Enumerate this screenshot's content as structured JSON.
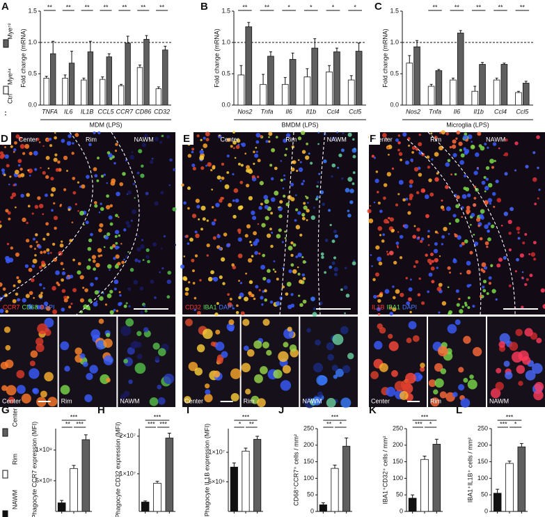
{
  "chart_data": [
    {
      "type": "bar",
      "panel": "A",
      "ylabel": "Fold change (mRNA)",
      "xlabel": "MDM (LPS)",
      "categories": [
        "TNFA",
        "IL6",
        "IL1B",
        "CCL5",
        "CCR7",
        "CD86",
        "CD32"
      ],
      "series": [
        {
          "name": "Mye²⁴",
          "color": "#ffffff",
          "values": [
            0.43,
            0.43,
            0.4,
            0.41,
            0.31,
            0.6,
            0.26
          ],
          "errors": [
            0.03,
            0.05,
            0.03,
            0.04,
            0.02,
            0.04,
            0.03
          ]
        },
        {
          "name": "Mye⁷²",
          "color": "#5f5f5f",
          "values": [
            0.82,
            0.67,
            0.85,
            0.77,
            0.99,
            1.05,
            0.88
          ],
          "errors": [
            0.2,
            0.19,
            0.17,
            0.05,
            0.11,
            0.06,
            0.06
          ]
        }
      ],
      "reference_line": {
        "name": "Ctrl",
        "value": 1
      },
      "significance": [
        "**",
        "**",
        "**",
        "**",
        "**",
        "**",
        "**"
      ],
      "ylim": [
        0,
        1.5
      ],
      "yticks": [
        {
          "value": 0,
          "label": "0.0"
        },
        {
          "value": 0.5,
          "label": "0.5"
        },
        {
          "value": 1,
          "label": "1.0"
        },
        {
          "value": 1.5,
          "label": "1.5"
        }
      ]
    },
    {
      "type": "bar",
      "panel": "B",
      "ylabel": "Fold change (mRNA)",
      "xlabel": "BMDM (LPS)",
      "categories": [
        "Nos2",
        "Tnfa",
        "Il6",
        "Il1b",
        "Ccl4",
        "Ccl5"
      ],
      "series": [
        {
          "color": "#ffffff",
          "values": [
            0.48,
            0.33,
            0.33,
            0.45,
            0.53,
            0.4
          ],
          "errors": [
            0.15,
            0.16,
            0.11,
            0.13,
            0.1,
            0.07
          ]
        },
        {
          "color": "#5f5f5f",
          "values": [
            1.25,
            0.78,
            0.73,
            0.91,
            0.85,
            0.86
          ],
          "errors": [
            0.07,
            0.07,
            0.1,
            0.15,
            0.06,
            0.13
          ]
        }
      ],
      "reference_line": {
        "value": 1
      },
      "significance": [
        "**",
        "**",
        "*",
        "*",
        "*",
        "*"
      ],
      "ylim": [
        0,
        1.5
      ],
      "yticks": [
        {
          "value": 0,
          "label": "0.0"
        },
        {
          "value": 0.5,
          "label": "0.5"
        },
        {
          "value": 1,
          "label": "1.0"
        },
        {
          "value": 1.5,
          "label": "1.5"
        }
      ]
    },
    {
      "type": "bar",
      "panel": "C",
      "ylabel": "Fold change (mRNA)",
      "xlabel": "Microglia (LPS)",
      "categories": [
        "Nos2",
        "Tnfa",
        "Il6",
        "Il1b",
        "Ccl4",
        "Ccl5"
      ],
      "series": [
        {
          "color": "#ffffff",
          "values": [
            0.67,
            0.3,
            0.4,
            0.22,
            0.4,
            0.2
          ],
          "errors": [
            0.12,
            0.03,
            0.03,
            0.08,
            0.03,
            0.02
          ]
        },
        {
          "color": "#5f5f5f",
          "values": [
            0.93,
            0.55,
            1.15,
            0.65,
            0.65,
            0.35
          ],
          "errors": [
            0.1,
            0.02,
            0.04,
            0.03,
            0.02,
            0.03
          ]
        }
      ],
      "reference_line": {
        "value": 1
      },
      "significance": [
        null,
        "**",
        "**",
        "**",
        "**",
        "**"
      ],
      "ylim": [
        0,
        1.5
      ],
      "yticks": [
        {
          "value": 0,
          "label": "0.0"
        },
        {
          "value": 0.5,
          "label": "0.5"
        },
        {
          "value": 1,
          "label": "1.0"
        },
        {
          "value": 1.5,
          "label": "1.5"
        }
      ]
    },
    {
      "type": "bar",
      "panel": "G",
      "ylabel": "Phagocyte CCR7 expression (MFI)",
      "categories": [
        "NAWM",
        "Rim",
        "Center"
      ],
      "colors": [
        "#111111",
        "#ffffff",
        "#5f5f5f"
      ],
      "values": [
        140000000,
        700000000,
        1170000000
      ],
      "errors": [
        40000000,
        50000000,
        80000000
      ],
      "significance": [
        "***",
        "**",
        "***"
      ],
      "ylim": [
        0,
        1350000000
      ],
      "yticks": [
        {
          "value": 500000000,
          "label": "5×10⁸"
        },
        {
          "value": 1000000000,
          "label": "1×10⁹"
        }
      ]
    },
    {
      "type": "bar",
      "panel": "H",
      "ylabel": "Phagocyte CD32 expression (MFI)",
      "colors": [
        "#111111",
        "#ffffff",
        "#5f5f5f"
      ],
      "values": [
        2500000,
        7500000,
        19500000
      ],
      "errors": [
        300000,
        500000,
        1300000
      ],
      "significance": [
        "***",
        "***",
        "***"
      ],
      "ylim": [
        0,
        22000000
      ],
      "yticks": [
        {
          "value": 10000000,
          "label": "1×10⁷"
        },
        {
          "value": 20000000,
          "label": "2×10⁷"
        }
      ]
    },
    {
      "type": "bar",
      "panel": "I",
      "ylabel": "Phagocyte IL1B expression (MFI)",
      "colors": [
        "#111111",
        "#ffffff",
        "#5f5f5f"
      ],
      "values": [
        7500000,
        10200000,
        12200000
      ],
      "errors": [
        700000,
        500000,
        500000
      ],
      "significance": [
        "***",
        "*",
        "**"
      ],
      "ylim": [
        0,
        14000000
      ],
      "yticks": [
        {
          "value": 5000000,
          "label": "5×10⁶"
        },
        {
          "value": 10000000,
          "label": "1×10⁷"
        }
      ]
    },
    {
      "type": "bar",
      "panel": "J",
      "ylabel": "CD68⁺CCR7⁺ cells / mm²",
      "colors": [
        "#111111",
        "#ffffff",
        "#5f5f5f"
      ],
      "values": [
        20,
        130,
        197
      ],
      "errors": [
        6,
        10,
        25
      ],
      "significance": [
        "***",
        "**",
        "*"
      ],
      "ylim": [
        0,
        250
      ],
      "yticks": [
        0,
        50,
        100,
        150,
        200,
        250
      ]
    },
    {
      "type": "bar",
      "panel": "K",
      "ylabel": "IBA1⁺CD32⁺ cells / mm²",
      "colors": [
        "#111111",
        "#ffffff",
        "#5f5f5f"
      ],
      "values": [
        40,
        157,
        203
      ],
      "errors": [
        10,
        10,
        15
      ],
      "significance": [
        "***",
        "***",
        "*"
      ],
      "ylim": [
        0,
        250
      ],
      "yticks": [
        0,
        50,
        100,
        150,
        200,
        250
      ]
    },
    {
      "type": "bar",
      "panel": "L",
      "ylabel": "IBA1⁺IL1B⁺ cells / mm²",
      "colors": [
        "#111111",
        "#ffffff",
        "#5f5f5f"
      ],
      "values": [
        55,
        145,
        195
      ],
      "errors": [
        12,
        7,
        10
      ],
      "significance": [
        "***",
        "***",
        "*"
      ],
      "ylim": [
        0,
        250
      ],
      "yticks": [
        0,
        50,
        100,
        150,
        200,
        250
      ]
    }
  ],
  "image_panels": [
    {
      "letter": "D",
      "regions": [
        "Center",
        "Rim",
        "NAWM"
      ],
      "stain": [
        {
          "text": "CCR7",
          "color": "#ff3b30"
        },
        {
          "text": "CD68",
          "color": "#5ee05e"
        },
        {
          "text": "DAPI",
          "color": "#4a7dff"
        }
      ],
      "insets": [
        "Center",
        "Rim",
        "NAWM"
      ]
    },
    {
      "letter": "E",
      "regions": [
        "Center",
        "Rim",
        "NAWM"
      ],
      "stain": [
        {
          "text": "CD32",
          "color": "#ff3b30"
        },
        {
          "text": "IBA1",
          "color": "#5ee05e"
        },
        {
          "text": "DAPI",
          "color": "#4a7dff"
        }
      ],
      "insets": [
        "Center",
        "Rim",
        "NAWM"
      ]
    },
    {
      "letter": "F",
      "regions": [
        "Center",
        "Rim",
        "NAWM"
      ],
      "stain": [
        {
          "text": "IL1B",
          "color": "#ff3b30"
        },
        {
          "text": "IBA1",
          "color": "#5ee05e"
        },
        {
          "text": "DAPI",
          "color": "#4a7dff"
        }
      ],
      "insets": [
        "Center",
        "Rim",
        "NAWM"
      ]
    }
  ]
}
